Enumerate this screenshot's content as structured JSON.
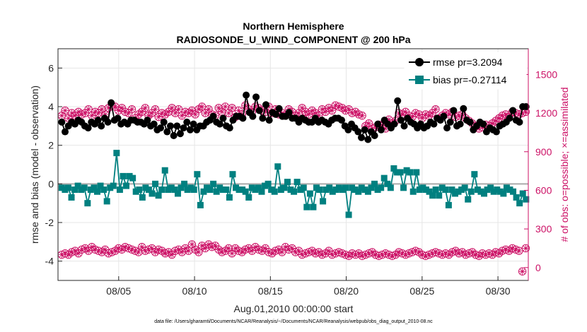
{
  "chart_data": {
    "type": "line",
    "title": "Northern Hemisphere",
    "subtitle": "RADIOSONDE_U_WIND_COMPONENT @ 200 hPa",
    "xlabel": "Aug.01,2010 00:00:00 start",
    "ylabel": "rmse and bias (model - observation)",
    "ylabel_right": "# of obs: o=possible; ×=assimilated",
    "footer": "data file: /Users/gharamti/Documents/NCAR/Reanalysis/~/Documents/NCAR/Reanalysis/webpub/obs_diag_output_2010-08.nc",
    "xlim": [
      1,
      32
    ],
    "ylim": [
      -5,
      7
    ],
    "ylim_right": [
      -100,
      1700
    ],
    "xticks": [
      5,
      10,
      15,
      20,
      25,
      30
    ],
    "xtick_labels": [
      "08/05",
      "08/10",
      "08/15",
      "08/20",
      "08/25",
      "08/30"
    ],
    "yticks": [
      -4,
      -2,
      0,
      2,
      4,
      6
    ],
    "yticks_right": [
      0,
      300,
      600,
      900,
      1200,
      1500
    ],
    "grid": true,
    "legend_position": "top-right",
    "colors": {
      "rmse": "#000000",
      "bias": "#008080",
      "obs": "#cc1166",
      "zero_line": "#aaaaaa"
    },
    "series": [
      {
        "name": "rmse pr=3.2094",
        "axis": "left",
        "marker": "circle",
        "values": [
          3.2,
          2.7,
          3.0,
          3.2,
          3.1,
          3.3,
          3.2,
          3.0,
          2.9,
          3.2,
          3.1,
          3.3,
          3.0,
          3.4,
          3.2,
          4.2,
          3.3,
          3.4,
          3.1,
          3.2,
          3.1,
          3.3,
          3.3,
          3.2,
          3.2,
          3.1,
          3.3,
          3.0,
          3.1,
          2.8,
          2.9,
          3.2,
          2.7,
          3.0,
          2.5,
          3.0,
          2.6,
          2.9,
          3.2,
          2.8,
          3.1,
          2.8,
          3.0,
          3.0,
          3.2,
          3.3,
          3.5,
          3.2,
          3.1,
          3.4,
          3.0,
          2.9,
          3.3,
          3.5,
          3.5,
          3.4,
          4.6,
          3.7,
          3.5,
          4.5,
          3.8,
          3.4,
          4.1,
          3.3,
          3.7,
          3.6,
          3.9,
          3.5,
          3.5,
          3.7,
          3.4,
          3.4,
          3.2,
          3.4,
          3.3,
          3.2,
          3.2,
          3.4,
          3.2,
          3.3,
          3.2,
          3.1,
          3.3,
          3.4,
          3.4,
          3.3,
          3.0,
          2.8,
          3.1,
          2.9,
          2.7,
          2.4,
          2.8,
          2.3,
          2.7,
          2.5,
          3.1,
          2.8,
          3.3,
          3.1,
          2.9,
          3.1,
          4.3,
          3.3,
          3.0,
          3.4,
          3.2,
          3.1,
          2.9,
          3.1,
          2.9,
          3.0,
          3.2,
          3.1,
          3.4,
          3.3,
          3.5,
          2.9,
          3.2,
          3.8,
          3.0,
          3.1,
          3.9,
          3.3,
          3.2,
          2.8,
          3.0,
          3.2,
          3.1,
          2.7,
          2.9,
          2.8,
          2.7,
          3.0,
          3.1,
          3.2,
          3.4,
          3.8,
          3.3,
          3.2,
          4.0,
          4.0
        ],
        "y_start": 1.25,
        "y_step": 0.25
      },
      {
        "name": "bias pr=-0.27114",
        "axis": "left",
        "marker": "square",
        "values": [
          -0.2,
          -0.3,
          -0.2,
          -0.7,
          -0.3,
          -0.1,
          -0.3,
          -0.2,
          -1.0,
          -0.3,
          -0.2,
          -0.4,
          -0.1,
          -0.3,
          -0.9,
          -0.2,
          -0.1,
          1.6,
          -0.3,
          0.4,
          -0.1,
          0.4,
          0.3,
          -0.4,
          -0.3,
          -0.7,
          -0.2,
          -0.3,
          -0.5,
          0.0,
          -0.6,
          -0.3,
          0.7,
          -0.3,
          -0.2,
          -0.3,
          -0.5,
          -0.2,
          0.0,
          -0.3,
          -0.2,
          -0.3,
          0.5,
          -1.1,
          -0.4,
          -0.2,
          -0.3,
          0.0,
          -0.4,
          -0.2,
          -0.3,
          -0.3,
          -0.7,
          0.5,
          -0.2,
          -0.3,
          -0.3,
          -0.4,
          -0.7,
          -0.2,
          -0.3,
          -0.2,
          -0.4,
          -0.1,
          0.0,
          -0.3,
          -0.4,
          0.9,
          -0.3,
          -0.2,
          0.1,
          -0.3,
          -0.4,
          0.1,
          -0.3,
          -0.2,
          -1.2,
          -0.5,
          -1.2,
          -0.2,
          -0.3,
          -0.9,
          -0.3,
          -0.2,
          -0.4,
          -0.3,
          -0.2,
          -0.3,
          -0.2,
          -1.6,
          -0.2,
          -0.3,
          -0.4,
          -0.2,
          -0.3,
          -0.4,
          -0.2,
          0.0,
          -0.3,
          -0.2,
          0.3,
          0.0,
          -0.2,
          0.8,
          0.6,
          0.6,
          -0.2,
          0.7,
          0.6,
          -0.4,
          0.6,
          -0.3,
          -0.2,
          -0.3,
          -0.4,
          -0.6,
          -0.3,
          -0.6,
          -0.2,
          -0.3,
          -1.1,
          -0.3,
          -0.5,
          -0.4,
          -0.3,
          -0.2,
          -0.8,
          -0.4,
          0.5,
          -0.3,
          -0.4,
          -0.5,
          -0.3,
          -0.2,
          -0.4,
          -0.3,
          -0.4,
          -0.5,
          -0.2,
          -0.3,
          -0.4,
          -0.7,
          -1.0,
          -0.5,
          -0.8
        ],
        "y_start": 1.25,
        "y_step": 0.25
      },
      {
        "name": "obs possible / assimilated",
        "axis": "right",
        "marker": "circle-star",
        "values_upper": [
          1180,
          1220,
          1160,
          1200,
          1180,
          1210,
          1190,
          1200,
          1230,
          1180,
          1210,
          1200,
          1230,
          1190,
          1240,
          1260,
          1250,
          1220,
          1240,
          1210,
          1200,
          1230,
          1160,
          1190,
          1210,
          1240,
          1180,
          1200,
          1230,
          1170,
          1200,
          1190,
          1210,
          1240,
          1200,
          1230,
          1180,
          1210,
          1200,
          1220,
          1190,
          1230,
          1250,
          1200,
          1230,
          1190,
          1180,
          1240,
          1210,
          1250,
          1200,
          1240,
          1170,
          1220,
          1190,
          1260,
          1230,
          1210,
          1250,
          1240,
          1220,
          1210,
          1250,
          1200,
          1230,
          1190,
          1200,
          1180,
          1230,
          1210,
          1180,
          1200,
          1240,
          1210,
          1190,
          1220,
          1200,
          1180,
          1230,
          1210,
          1240,
          1220,
          1260,
          1250,
          1240,
          1220,
          1230,
          1200,
          1210,
          1190,
          1180,
          1100,
          1120,
          1080,
          1090,
          1110,
          1100,
          1080,
          1150,
          1120,
          1140,
          1200,
          1190,
          1210,
          1180,
          1170,
          1200,
          1190,
          1160,
          1190,
          1180,
          1200,
          1230,
          1160,
          1180,
          1200,
          1190,
          1210,
          1170,
          1180,
          1190,
          1160,
          1140,
          1120,
          1100,
          1080,
          1090,
          1110,
          1100,
          1120,
          1140,
          1160,
          1180,
          1190,
          1170,
          1210,
          1200,
          1190,
          1200,
          1210
        ],
        "values_lower": [
          100,
          110,
          100,
          120,
          130,
          110,
          140,
          150,
          130,
          160,
          140,
          130,
          120,
          140,
          110,
          120,
          130,
          150,
          140,
          160,
          150,
          140,
          130,
          120,
          160,
          130,
          140,
          150,
          120,
          140,
          130,
          110,
          120,
          100,
          130,
          140,
          120,
          150,
          130,
          180,
          140,
          120,
          170,
          150,
          180,
          160,
          170,
          140,
          120,
          130,
          150,
          110,
          150,
          130,
          120,
          140,
          150,
          130,
          160,
          140,
          130,
          150,
          120,
          110,
          130,
          140,
          120,
          160,
          140,
          150,
          120,
          130,
          100,
          110,
          120,
          130,
          110,
          120,
          100,
          110,
          130,
          100,
          110,
          120,
          110,
          100,
          90,
          110,
          100,
          110,
          90,
          100,
          110,
          120,
          100,
          90,
          100,
          110,
          100,
          90,
          100,
          120,
          110,
          100,
          110,
          120,
          130,
          120,
          100,
          90,
          100,
          110,
          120,
          110,
          100,
          110,
          100,
          120,
          130,
          110,
          120,
          100,
          110,
          120,
          100,
          90,
          110,
          100,
          110,
          100,
          120,
          110,
          130,
          140,
          130,
          150,
          140,
          130,
          -30,
          150
        ]
      }
    ]
  }
}
